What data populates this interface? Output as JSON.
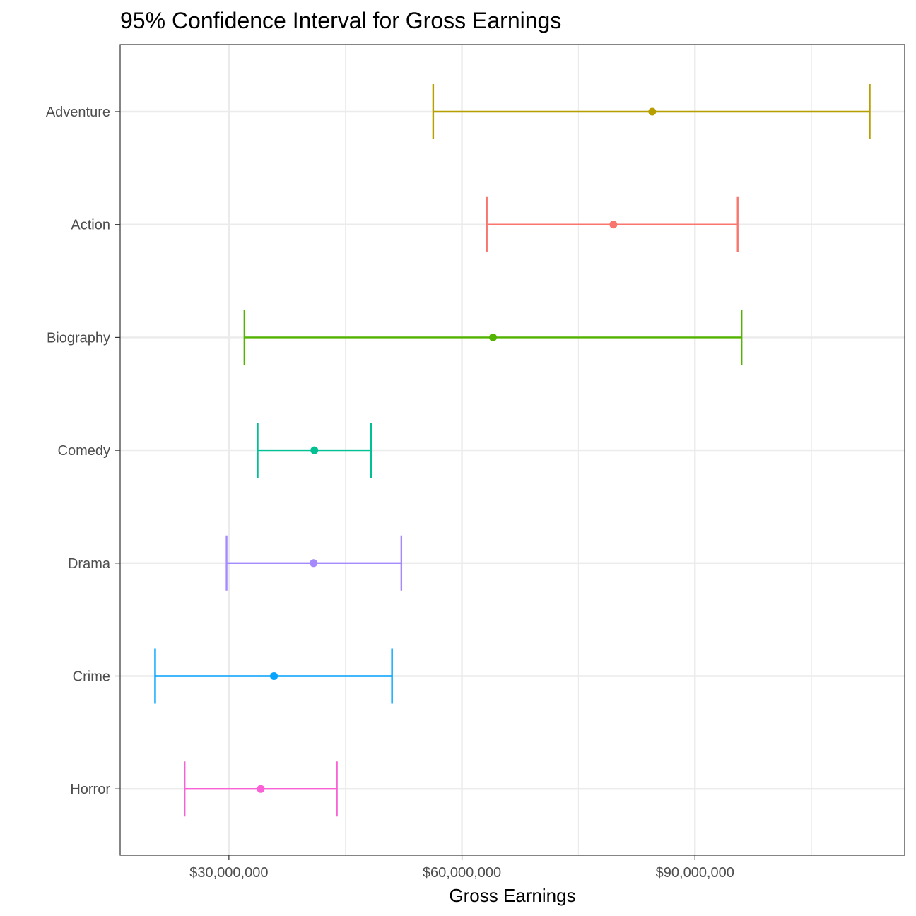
{
  "chart_data": {
    "type": "errorbar",
    "title": "95% Confidence Interval for Gross Earnings",
    "xlabel": "Gross Earnings",
    "ylabel": "",
    "xlim": [
      16000000,
      117000000
    ],
    "x_ticks": [
      30000000,
      60000000,
      90000000
    ],
    "x_tick_labels": [
      "$30,000,000",
      "$60,000,000",
      "$90,000,000"
    ],
    "grid": true,
    "legend": "none",
    "categories": [
      "Adventure",
      "Action",
      "Biography",
      "Comedy",
      "Drama",
      "Crime",
      "Horror"
    ],
    "series": [
      {
        "category": "Adventure",
        "mean": 84500000,
        "lower": 56300000,
        "upper": 112500000,
        "color": "#B79F00"
      },
      {
        "category": "Action",
        "mean": 79500000,
        "lower": 63200000,
        "upper": 95500000,
        "color": "#F8766D"
      },
      {
        "category": "Biography",
        "mean": 64000000,
        "lower": 32000000,
        "upper": 96000000,
        "color": "#53B400"
      },
      {
        "category": "Comedy",
        "mean": 41000000,
        "lower": 33700000,
        "upper": 48300000,
        "color": "#00C094"
      },
      {
        "category": "Drama",
        "mean": 40900000,
        "lower": 29700000,
        "upper": 52200000,
        "color": "#A58AFF"
      },
      {
        "category": "Crime",
        "mean": 35800000,
        "lower": 20500000,
        "upper": 51000000,
        "color": "#06A4FF"
      },
      {
        "category": "Horror",
        "mean": 34100000,
        "lower": 24300000,
        "upper": 43900000,
        "color": "#FB61D7"
      }
    ]
  },
  "colors": {
    "grid": "#ebebeb",
    "panel_border": "#333333",
    "tick": "#333333"
  }
}
